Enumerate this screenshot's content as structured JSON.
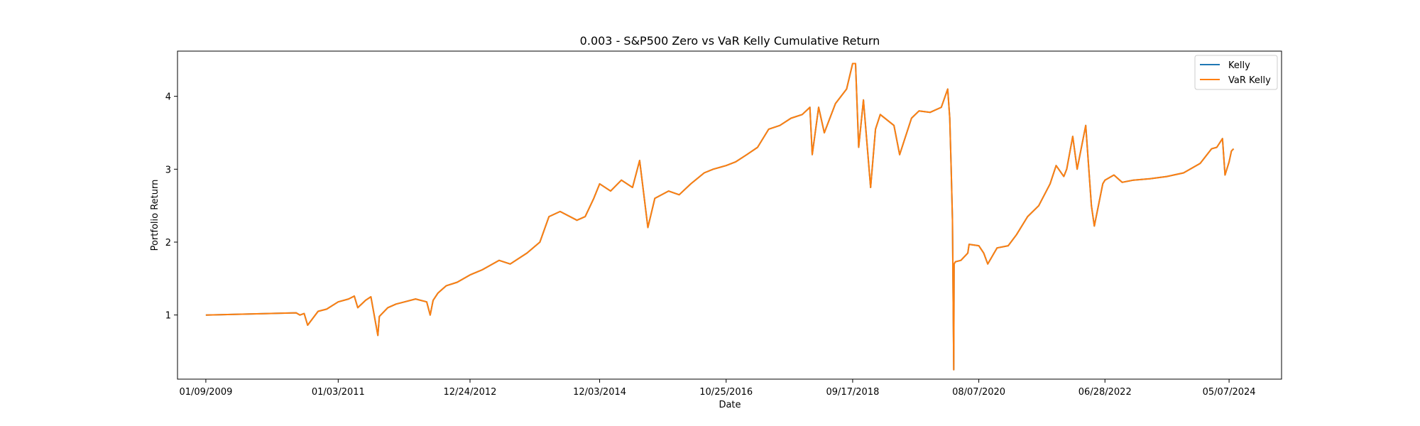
{
  "chart_data": {
    "type": "line",
    "title": "0.003 - S&P500 Zero vs VaR Kelly Cumulative Return",
    "xlabel": "Date",
    "ylabel": "Portfolio Return",
    "xlim": [
      "2008-08-07",
      "2025-02-18"
    ],
    "ylim": [
      0.12,
      4.62
    ],
    "x_ticks": [
      "01/09/2009",
      "01/03/2011",
      "12/24/2012",
      "12/03/2014",
      "10/25/2016",
      "09/17/2018",
      "08/07/2020",
      "06/28/2022",
      "05/07/2024"
    ],
    "x_tick_dates": [
      "2009-01-09",
      "2011-01-03",
      "2012-12-24",
      "2014-12-03",
      "2016-10-25",
      "2018-09-17",
      "2020-08-07",
      "2022-06-28",
      "2024-05-07"
    ],
    "y_ticks": [
      1,
      2,
      3,
      4
    ],
    "grid": false,
    "legend_position": "top-right",
    "colors": {
      "Kelly": "#1f77b4",
      "VaR Kelly": "#ff7f0e"
    },
    "series": [
      {
        "name": "Kelly",
        "x": [
          "2009-01-09",
          "2010-05-18",
          "2010-06-08",
          "2010-07-01",
          "2010-07-20",
          "2010-09-15",
          "2010-11-01",
          "2011-01-03",
          "2011-03-01",
          "2011-04-01",
          "2011-04-20",
          "2011-06-01",
          "2011-07-01",
          "2011-08-08",
          "2011-08-16",
          "2011-10-01",
          "2011-11-15",
          "2012-01-01",
          "2012-03-01",
          "2012-05-01",
          "2012-05-20",
          "2012-06-05",
          "2012-07-01",
          "2012-08-15",
          "2012-10-15",
          "2012-12-24",
          "2013-03-01",
          "2013-06-01",
          "2013-08-01",
          "2013-11-01",
          "2014-01-10",
          "2014-03-01",
          "2014-05-01",
          "2014-08-01",
          "2014-09-15",
          "2014-11-01",
          "2014-12-03",
          "2015-02-01",
          "2015-04-01",
          "2015-06-01",
          "2015-07-10",
          "2015-08-24",
          "2015-10-01",
          "2015-12-15",
          "2016-02-11",
          "2016-04-15",
          "2016-06-27",
          "2016-08-15",
          "2016-10-25",
          "2016-12-15",
          "2017-02-15",
          "2017-04-15",
          "2017-06-15",
          "2017-08-15",
          "2017-10-15",
          "2017-12-15",
          "2018-01-26",
          "2018-02-08",
          "2018-03-15",
          "2018-04-15",
          "2018-06-15",
          "2018-08-15",
          "2018-09-17",
          "2018-10-03",
          "2018-10-20",
          "2018-11-15",
          "2018-12-24",
          "2019-01-20",
          "2019-02-15",
          "2019-05-01",
          "2019-06-01",
          "2019-08-05",
          "2019-09-15",
          "2019-11-15",
          "2020-01-15",
          "2020-02-19",
          "2020-03-01",
          "2020-03-09",
          "2020-03-16",
          "2020-03-23",
          "2020-03-25",
          "2020-04-01",
          "2020-05-01",
          "2020-06-08",
          "2020-06-15",
          "2020-08-07",
          "2020-09-03",
          "2020-09-25",
          "2020-11-15",
          "2021-01-15",
          "2021-03-01",
          "2021-05-01",
          "2021-07-01",
          "2021-09-01",
          "2021-10-04",
          "2021-11-15",
          "2021-12-01",
          "2022-01-03",
          "2022-01-27",
          "2022-03-15",
          "2022-04-15",
          "2022-05-01",
          "2022-06-16",
          "2022-06-28",
          "2022-08-16",
          "2022-09-30",
          "2022-12-01",
          "2023-03-01",
          "2023-06-01",
          "2023-09-01",
          "2023-12-01",
          "2024-02-01",
          "2024-03-01",
          "2024-04-01",
          "2024-04-15",
          "2024-05-07",
          "2024-05-20",
          "2024-06-01"
        ],
        "y": [
          1.0,
          1.03,
          1.0,
          1.02,
          0.86,
          1.05,
          1.08,
          1.18,
          1.22,
          1.26,
          1.1,
          1.2,
          1.25,
          0.72,
          0.98,
          1.1,
          1.15,
          1.18,
          1.22,
          1.18,
          1.0,
          1.2,
          1.3,
          1.4,
          1.45,
          1.55,
          1.62,
          1.75,
          1.7,
          1.85,
          2.0,
          2.35,
          2.42,
          2.3,
          2.35,
          2.6,
          2.8,
          2.7,
          2.85,
          2.75,
          3.12,
          2.2,
          2.6,
          2.7,
          2.65,
          2.8,
          2.95,
          3.0,
          3.05,
          3.1,
          3.2,
          3.3,
          3.55,
          3.6,
          3.7,
          3.75,
          3.85,
          3.2,
          3.85,
          3.5,
          3.9,
          4.1,
          4.45,
          4.45,
          3.3,
          3.95,
          2.75,
          3.55,
          3.75,
          3.6,
          3.2,
          3.7,
          3.8,
          3.78,
          3.85,
          4.1,
          3.7,
          3.0,
          2.3,
          0.25,
          1.7,
          1.73,
          1.75,
          1.85,
          1.97,
          1.95,
          1.85,
          1.7,
          1.92,
          1.95,
          2.1,
          2.35,
          2.5,
          2.8,
          3.05,
          2.9,
          3.0,
          3.45,
          3.0,
          3.6,
          2.5,
          2.22,
          2.8,
          2.85,
          2.92,
          2.82,
          2.85,
          2.87,
          2.9,
          2.95,
          3.08,
          3.28,
          3.3,
          3.42,
          2.92,
          3.1,
          3.25,
          3.28
        ]
      },
      {
        "name": "VaR Kelly",
        "x": [
          "2009-01-09",
          "2010-05-18",
          "2010-06-08",
          "2010-07-01",
          "2010-07-20",
          "2010-09-15",
          "2010-11-01",
          "2011-01-03",
          "2011-03-01",
          "2011-04-01",
          "2011-04-20",
          "2011-06-01",
          "2011-07-01",
          "2011-08-08",
          "2011-08-16",
          "2011-10-01",
          "2011-11-15",
          "2012-01-01",
          "2012-03-01",
          "2012-05-01",
          "2012-05-20",
          "2012-06-05",
          "2012-07-01",
          "2012-08-15",
          "2012-10-15",
          "2012-12-24",
          "2013-03-01",
          "2013-06-01",
          "2013-08-01",
          "2013-11-01",
          "2014-01-10",
          "2014-03-01",
          "2014-05-01",
          "2014-08-01",
          "2014-09-15",
          "2014-11-01",
          "2014-12-03",
          "2015-02-01",
          "2015-04-01",
          "2015-06-01",
          "2015-07-10",
          "2015-08-24",
          "2015-10-01",
          "2015-12-15",
          "2016-02-11",
          "2016-04-15",
          "2016-06-27",
          "2016-08-15",
          "2016-10-25",
          "2016-12-15",
          "2017-02-15",
          "2017-04-15",
          "2017-06-15",
          "2017-08-15",
          "2017-10-15",
          "2017-12-15",
          "2018-01-26",
          "2018-02-08",
          "2018-03-15",
          "2018-04-15",
          "2018-06-15",
          "2018-08-15",
          "2018-09-17",
          "2018-10-03",
          "2018-10-20",
          "2018-11-15",
          "2018-12-24",
          "2019-01-20",
          "2019-02-15",
          "2019-05-01",
          "2019-06-01",
          "2019-08-05",
          "2019-09-15",
          "2019-11-15",
          "2020-01-15",
          "2020-02-19",
          "2020-03-01",
          "2020-03-09",
          "2020-03-16",
          "2020-03-23",
          "2020-03-25",
          "2020-04-01",
          "2020-05-01",
          "2020-06-08",
          "2020-06-15",
          "2020-08-07",
          "2020-09-03",
          "2020-09-25",
          "2020-11-15",
          "2021-01-15",
          "2021-03-01",
          "2021-05-01",
          "2021-07-01",
          "2021-09-01",
          "2021-10-04",
          "2021-11-15",
          "2021-12-01",
          "2022-01-03",
          "2022-01-27",
          "2022-03-15",
          "2022-04-15",
          "2022-05-01",
          "2022-06-16",
          "2022-06-28",
          "2022-08-16",
          "2022-09-30",
          "2022-12-01",
          "2023-03-01",
          "2023-06-01",
          "2023-09-01",
          "2023-12-01",
          "2024-02-01",
          "2024-03-01",
          "2024-04-01",
          "2024-04-15",
          "2024-05-07",
          "2024-05-20",
          "2024-06-01"
        ],
        "y": [
          1.0,
          1.03,
          1.0,
          1.02,
          0.86,
          1.05,
          1.08,
          1.18,
          1.22,
          1.26,
          1.1,
          1.2,
          1.25,
          0.72,
          0.98,
          1.1,
          1.15,
          1.18,
          1.22,
          1.18,
          1.0,
          1.2,
          1.3,
          1.4,
          1.45,
          1.55,
          1.62,
          1.75,
          1.7,
          1.85,
          2.0,
          2.35,
          2.42,
          2.3,
          2.35,
          2.6,
          2.8,
          2.7,
          2.85,
          2.75,
          3.12,
          2.2,
          2.6,
          2.7,
          2.65,
          2.8,
          2.95,
          3.0,
          3.05,
          3.1,
          3.2,
          3.3,
          3.55,
          3.6,
          3.7,
          3.75,
          3.85,
          3.2,
          3.85,
          3.5,
          3.9,
          4.1,
          4.45,
          4.45,
          3.3,
          3.95,
          2.75,
          3.55,
          3.75,
          3.6,
          3.2,
          3.7,
          3.8,
          3.78,
          3.85,
          4.1,
          3.7,
          3.0,
          2.3,
          0.25,
          1.7,
          1.73,
          1.75,
          1.85,
          1.97,
          1.95,
          1.85,
          1.7,
          1.92,
          1.95,
          2.1,
          2.35,
          2.5,
          2.8,
          3.05,
          2.9,
          3.0,
          3.45,
          3.0,
          3.6,
          2.5,
          2.22,
          2.8,
          2.85,
          2.92,
          2.82,
          2.85,
          2.87,
          2.9,
          2.95,
          3.08,
          3.28,
          3.3,
          3.42,
          2.92,
          3.1,
          3.25,
          3.28
        ]
      }
    ]
  }
}
